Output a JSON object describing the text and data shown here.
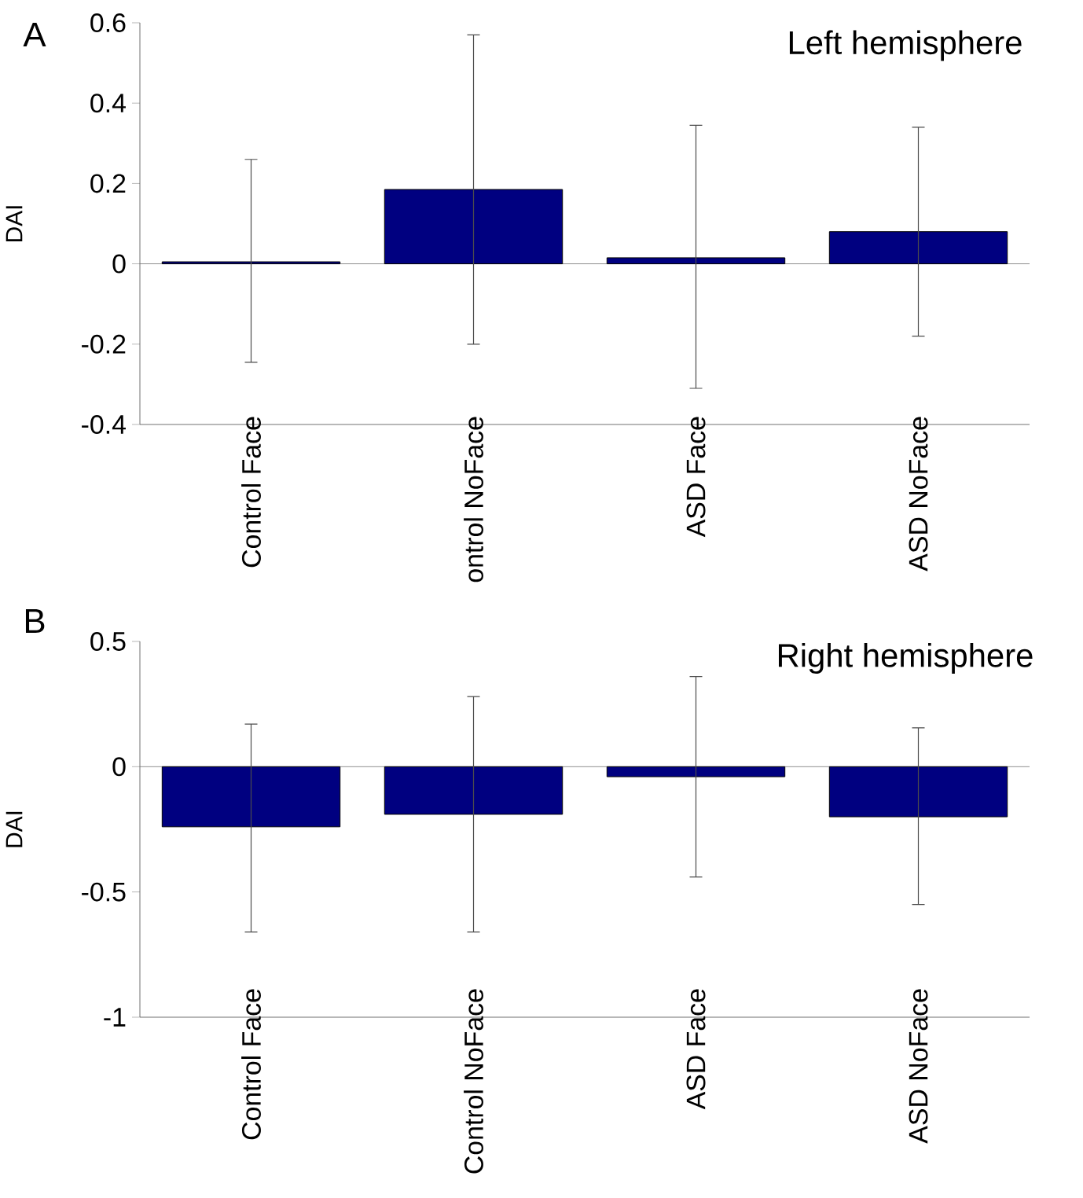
{
  "chart_data": [
    {
      "type": "bar",
      "title": "Left hemisphere",
      "ylabel": "DAI",
      "annotations": [
        "A"
      ],
      "categories": [
        "Control Face",
        "ontrol NoFace",
        "ASD Face",
        "ASD NoFace"
      ],
      "values": [
        0.005,
        0.185,
        0.015,
        0.08
      ],
      "errors": [
        [
          -0.245,
          0.26
        ],
        [
          -0.2,
          0.57
        ],
        [
          -0.31,
          0.345
        ],
        [
          -0.18,
          0.34
        ]
      ],
      "color": "#000080",
      "ylim": [
        -0.4,
        0.6
      ],
      "yticks": [
        -0.4,
        -0.2,
        0,
        0.2,
        0.4,
        0.6
      ]
    },
    {
      "type": "bar",
      "title": "Right hemisphere",
      "ylabel": "DAI",
      "annotations": [
        "B"
      ],
      "categories": [
        "Control Face",
        "Control NoFace",
        "ASD Face",
        "ASD NoFace"
      ],
      "values": [
        -0.24,
        -0.19,
        -0.04,
        -0.2
      ],
      "errors": [
        [
          -0.66,
          0.17
        ],
        [
          -0.66,
          0.28
        ],
        [
          -0.44,
          0.36
        ],
        [
          -0.55,
          0.155
        ]
      ],
      "color": "#000080",
      "ylim": [
        -1,
        0.5
      ],
      "yticks": [
        -1,
        -0.5,
        0,
        0.5
      ]
    }
  ]
}
